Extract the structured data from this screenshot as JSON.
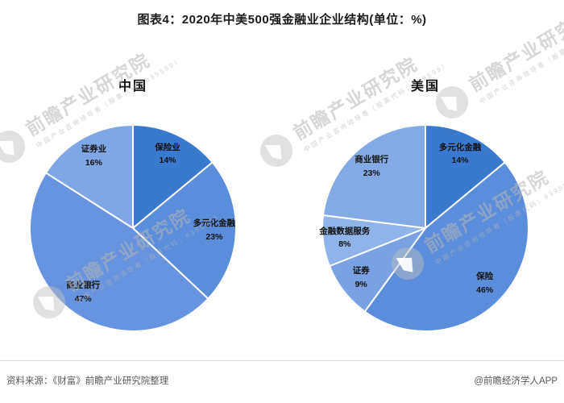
{
  "title": "图表4：2020年中美500强金融业企业结构(单位：%)",
  "watermark": {
    "text": "前瞻产业研究院",
    "subtext": "中国产业咨询领导者（股票代码：839599）",
    "logo": "qianzhan-logo"
  },
  "footer": {
    "source": "资料来源：《财富》前瞻产业研究院整理",
    "credit": "@前瞻经济学人APP"
  },
  "chart_data": [
    {
      "type": "pie",
      "title": "中国",
      "unit": "%",
      "start_angle": "12-oclock, clockwise",
      "slices": [
        {
          "label": "保险业",
          "value": 14,
          "color": "#3a7ace"
        },
        {
          "label": "多元化金融",
          "value": 23,
          "color": "#5a8edb"
        },
        {
          "label": "商业银行",
          "value": 47,
          "color": "#6794de"
        },
        {
          "label": "证券业",
          "value": 16,
          "color": "#7ea7e5"
        }
      ]
    },
    {
      "type": "pie",
      "title": "美国",
      "unit": "%",
      "start_angle": "12-oclock, clockwise",
      "slices": [
        {
          "label": "多元化金融",
          "value": 14,
          "color": "#3a7ace"
        },
        {
          "label": "保险",
          "value": 46,
          "color": "#5a8edb"
        },
        {
          "label": "证券",
          "value": 9,
          "color": "#78a2e2"
        },
        {
          "label": "金融数据服务",
          "value": 8,
          "color": "#8fb4e9"
        },
        {
          "label": "商业银行",
          "value": 23,
          "color": "#82aae5"
        }
      ]
    }
  ]
}
